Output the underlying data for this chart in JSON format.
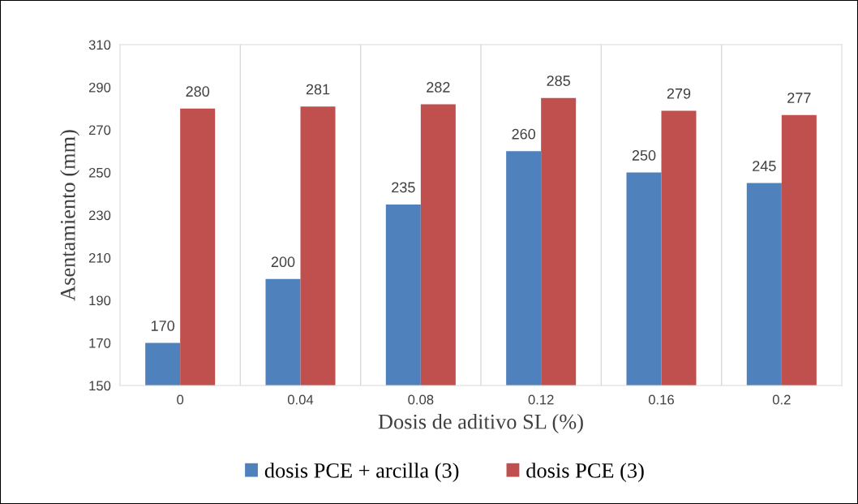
{
  "chart_data": {
    "type": "bar",
    "xlabel": "Dosis de aditivo SL (%)",
    "ylabel": "Asentamiento (mm)",
    "categories": [
      "0",
      "0.04",
      "0.08",
      "0.12",
      "0.16",
      "0.2"
    ],
    "series": [
      {
        "name": "dosis PCE + arcilla (3)",
        "color": "#4f81bd",
        "values": [
          170,
          200,
          235,
          260,
          250,
          245
        ]
      },
      {
        "name": "dosis PCE (3)",
        "color": "#c0504d",
        "values": [
          280,
          281,
          282,
          285,
          279,
          277
        ]
      }
    ],
    "ylim": [
      150,
      310
    ],
    "yticks": [
      150,
      170,
      190,
      210,
      230,
      250,
      270,
      290,
      310
    ],
    "grid": "x",
    "legend": "bottom",
    "data_labels": true
  }
}
